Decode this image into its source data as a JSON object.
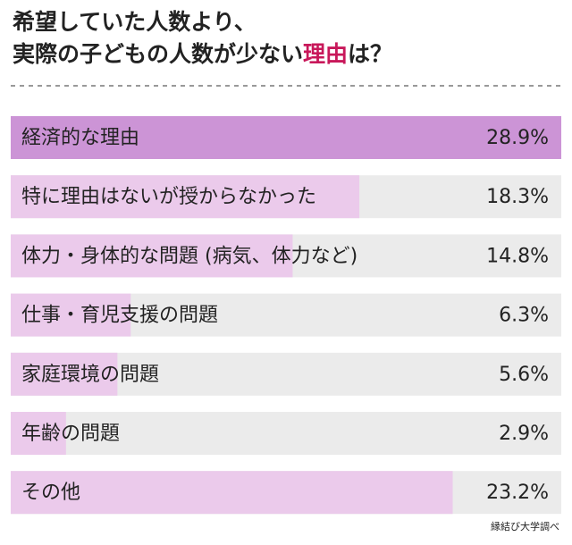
{
  "chart_data": {
    "type": "bar",
    "title_parts": [
      "希望していた人数より、",
      "実際の子どもの人数が少ない",
      "理由",
      "は？"
    ],
    "title_accent_color": "#c8185a",
    "categories": [
      "経済的な理由",
      "特に理由はないが授からなかった",
      "体力・身体的な問題 (病気、体力など)",
      "仕事・育児支援の問題",
      "家庭環境の問題",
      "年齢の問題",
      "その他"
    ],
    "values": [
      28.9,
      18.3,
      14.8,
      6.3,
      5.6,
      2.9,
      23.2
    ],
    "value_labels": [
      "28.9%",
      "18.3%",
      "14.8%",
      "6.3%",
      "5.6%",
      "2.9%",
      "23.2%"
    ],
    "colors": [
      "#cc94d6",
      "#ebcaeb",
      "#ebcaeb",
      "#ebcaeb",
      "#ebcaeb",
      "#ebcaeb",
      "#ebcaeb"
    ],
    "xlim": [
      0,
      28.9
    ],
    "source": "縁結び大学調べ"
  }
}
